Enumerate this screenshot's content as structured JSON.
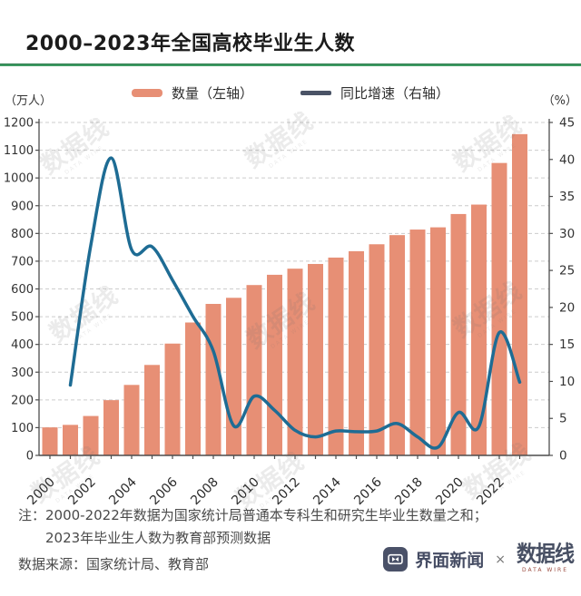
{
  "header": {
    "title": "2000–2023年全国高校毕业生人数"
  },
  "legend": {
    "items": [
      {
        "label": "数量（左轴）",
        "swatch_color": "#E78F75",
        "type": "bar"
      },
      {
        "label": "同比增速（右轴）",
        "swatch_color": "#4A5366",
        "type": "line"
      }
    ]
  },
  "axes": {
    "left_unit": "（万人）",
    "right_unit": "（%）"
  },
  "chart_data": {
    "type": "bar",
    "title": "2000–2023年全国高校毕业生人数",
    "categories": [
      "2000",
      "2001",
      "2002",
      "2003",
      "2004",
      "2005",
      "2006",
      "2007",
      "2008",
      "2009",
      "2010",
      "2011",
      "2012",
      "2013",
      "2014",
      "2015",
      "2016",
      "2017",
      "2018",
      "2019",
      "2020",
      "2021",
      "2022",
      "2023"
    ],
    "series": [
      {
        "name": "数量（左轴）",
        "type": "bar",
        "axis": "left",
        "color": "#E78F75",
        "values": [
          101,
          110,
          142,
          199,
          254,
          326,
          403,
          479,
          546,
          568,
          614,
          651,
          673,
          690,
          713,
          736,
          761,
          794,
          814,
          822,
          870,
          904,
          1054,
          1158
        ]
      },
      {
        "name": "同比增速（右轴）",
        "type": "line",
        "axis": "right",
        "color": "#1E6C94",
        "values": [
          null,
          9.5,
          28.4,
          40.2,
          27.8,
          28.2,
          23.7,
          18.8,
          14.1,
          4.0,
          8.0,
          6.1,
          3.4,
          2.5,
          3.3,
          3.2,
          3.3,
          4.3,
          2.5,
          1.1,
          5.8,
          3.9,
          16.6,
          9.9
        ]
      }
    ],
    "left_axis": {
      "label": "（万人）",
      "range": [
        0,
        1200
      ],
      "tick_step": 100
    },
    "right_axis": {
      "label": "（%）",
      "range": [
        0,
        45
      ],
      "tick_step": 5
    },
    "x_tick_labels": [
      "2000",
      "2002",
      "2004",
      "2006",
      "2008",
      "2010",
      "2012",
      "2014",
      "2016",
      "2018",
      "2020",
      "2022"
    ],
    "grid": true,
    "legend_position": "top"
  },
  "notes": {
    "line1": "注：2000-2022年数据为国家统计局普通本专科生和研究生毕业生数量之和；",
    "line2": "2023年毕业生人数为教育部预测数据",
    "source": "数据来源：国家统计局、教育部"
  },
  "footer": {
    "brand1": "界面新闻",
    "separator": "×",
    "brand2": "数据线",
    "brand2_sub": "DATA WIRE"
  },
  "watermark": {
    "text": "数据线",
    "sub": "DATA WIRE"
  },
  "colors": {
    "bar": "#E78F75",
    "line": "#1E6C94",
    "legend_line_swatch": "#4A5366",
    "title_rule_green": "#3E9A62",
    "brand_navy": "#474F63",
    "brand_red": "#9B4A3E",
    "grid": "#CCCCCC",
    "axis": "#4D4D4D"
  }
}
